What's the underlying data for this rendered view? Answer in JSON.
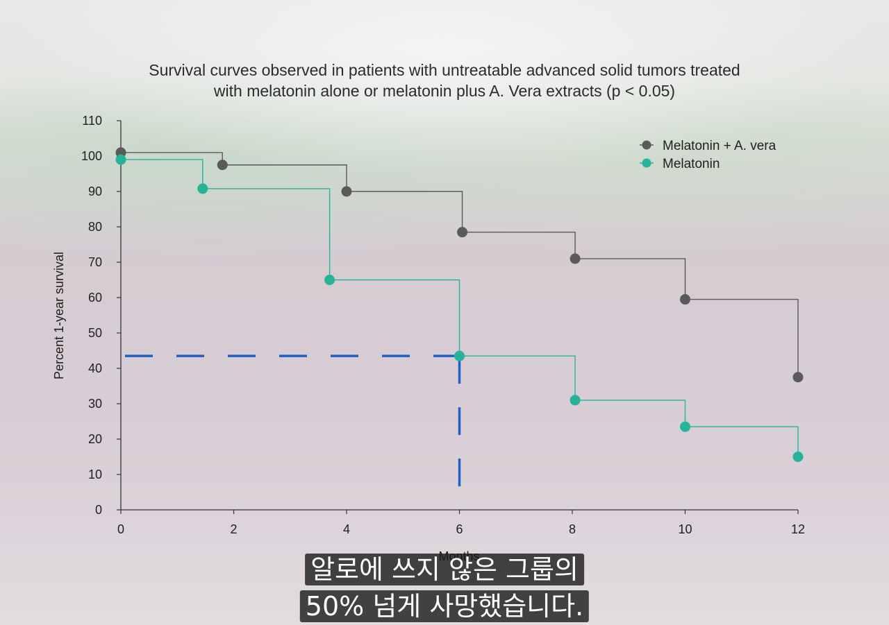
{
  "chart_data": {
    "type": "line",
    "step": true,
    "title_lines": [
      "Survival curves observed in patients with untreatable advanced solid tumors treated",
      "with melatonin alone or melatonin plus A. Vera extracts (p < 0.05)"
    ],
    "xlabel": "Months",
    "ylabel": "Percent 1-year survival",
    "xlim": [
      0,
      12
    ],
    "ylim": [
      0,
      110
    ],
    "x_ticks": [
      "0",
      "2",
      "4",
      "6",
      "8",
      "10",
      "12"
    ],
    "y_ticks": [
      "0",
      "10",
      "20",
      "30",
      "40",
      "50",
      "60",
      "70",
      "80",
      "90",
      "100",
      "110"
    ],
    "grid": false,
    "legend_position": "top-right",
    "series": [
      {
        "name": "Melatonin + A. vera",
        "color": "#5a5a5a",
        "points": [
          [
            0,
            101
          ],
          [
            1.8,
            97.5
          ],
          [
            4,
            90
          ],
          [
            6.05,
            78.5
          ],
          [
            8.05,
            71
          ],
          [
            10,
            59.5
          ],
          [
            12,
            37.5
          ]
        ]
      },
      {
        "name": "Melatonin",
        "color": "#26b39a",
        "points": [
          [
            0,
            99
          ],
          [
            1.45,
            90.8
          ],
          [
            3.7,
            65
          ],
          [
            6,
            43.5
          ],
          [
            8.05,
            31
          ],
          [
            10,
            23.5
          ],
          [
            12,
            15
          ]
        ]
      }
    ],
    "annotations": [
      {
        "type": "dashed-guide",
        "color": "#1f5fc8",
        "x": 6,
        "y": 43.5
      }
    ]
  },
  "subtitles": [
    "알로에 쓰지 않은 그룹의",
    "50% 넘게 사망했습니다."
  ]
}
